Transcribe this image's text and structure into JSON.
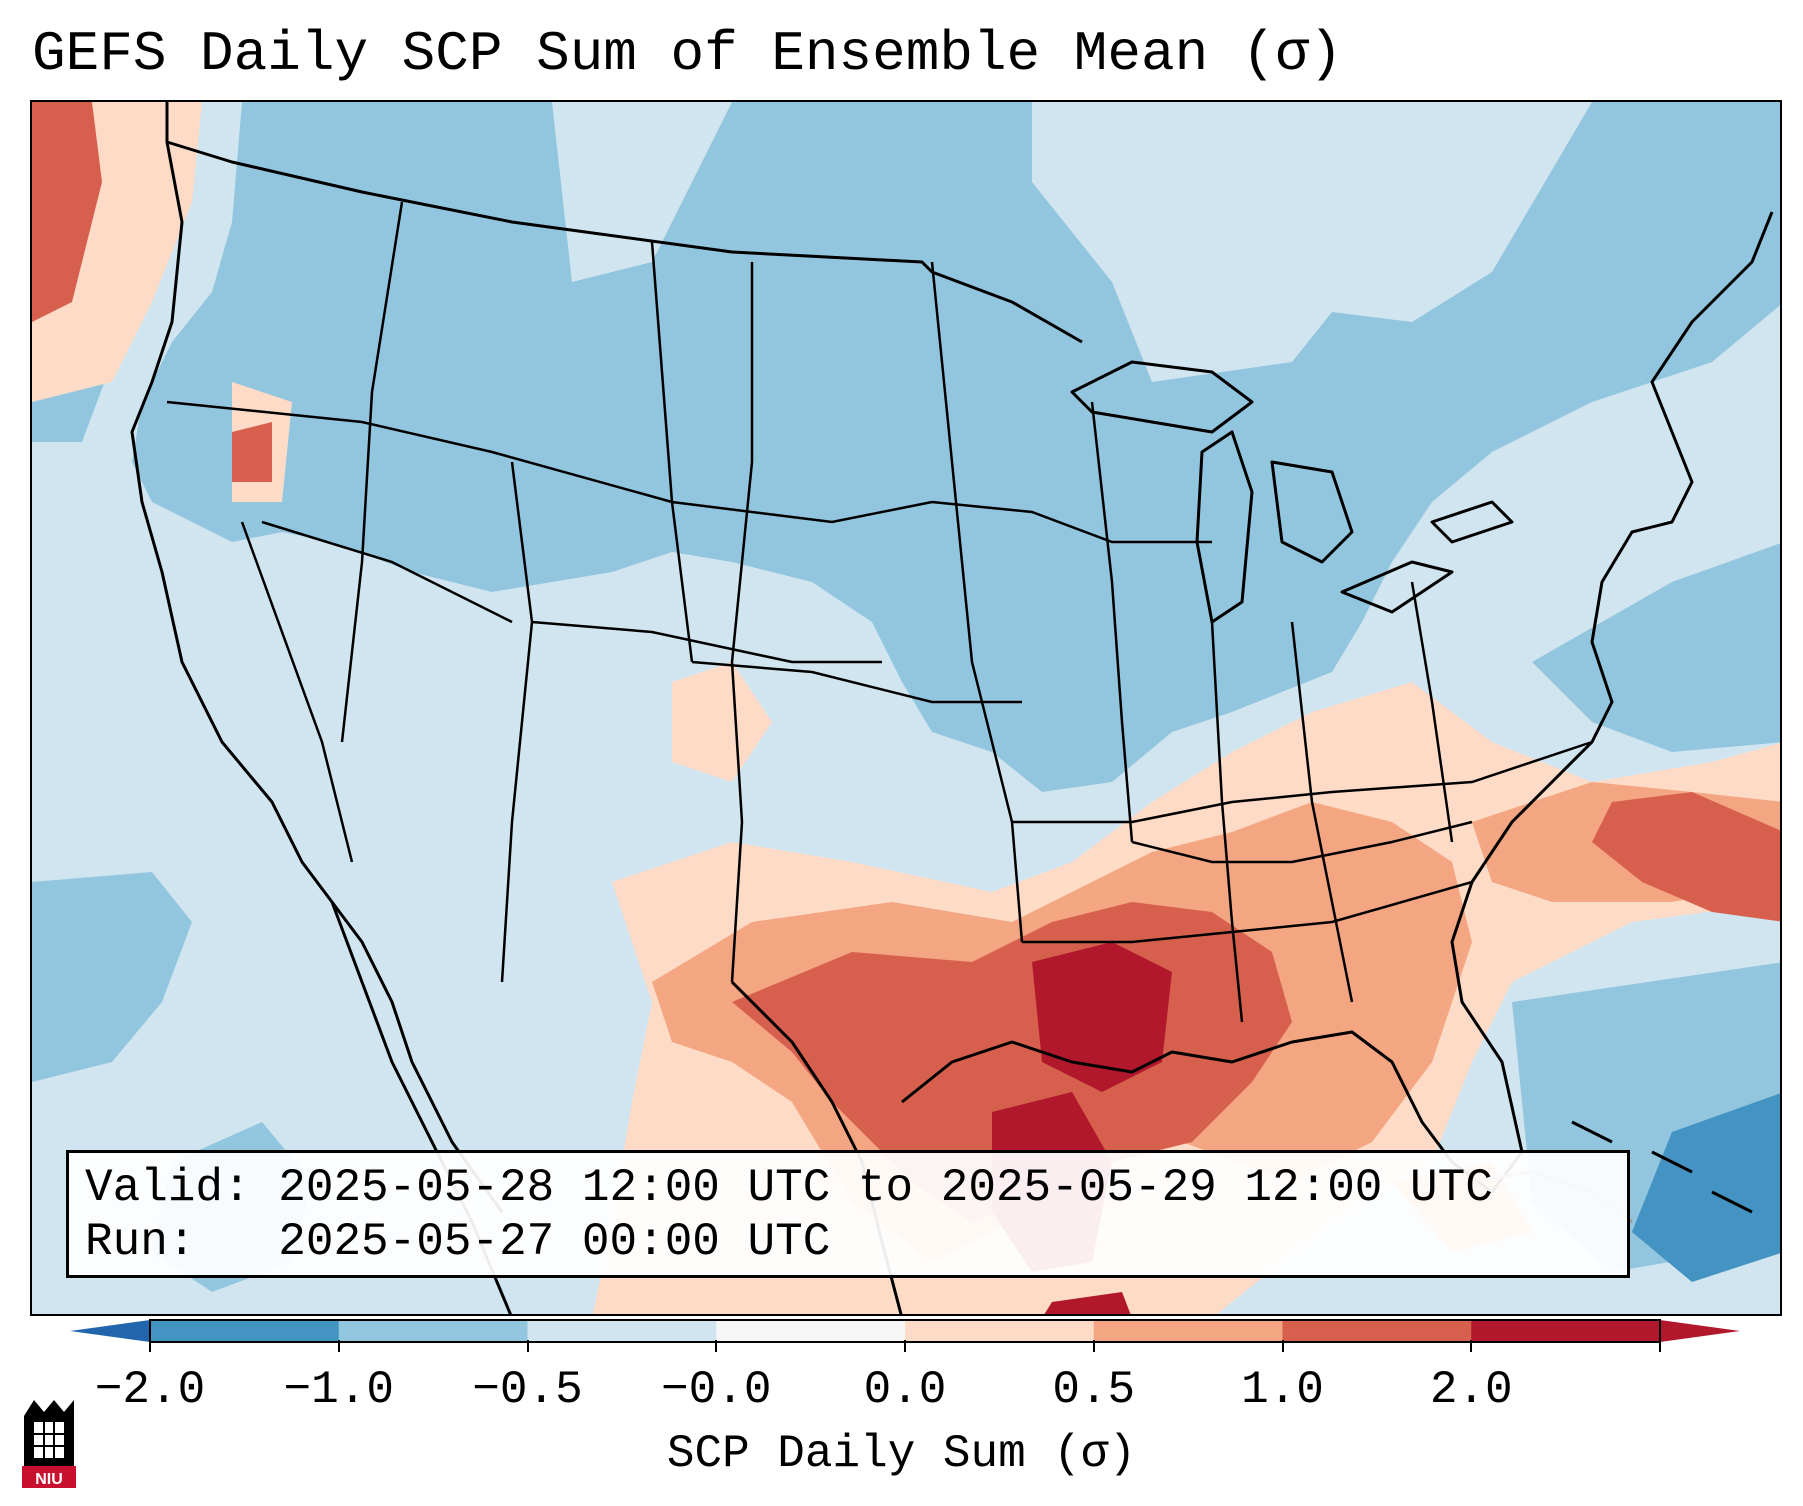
{
  "title": "GEFS Daily SCP Sum of Ensemble Mean (σ)",
  "info": {
    "valid_line": "Valid: 2025-05-28 12:00 UTC to 2025-05-29 12:00 UTC",
    "run_line": "Run:   2025-05-27 00:00 UTC"
  },
  "colorbar": {
    "label": "SCP Daily Sum (σ)",
    "ticks": [
      "−2.0",
      "−1.0",
      "−0.5",
      "−0.0",
      "0.0",
      "0.5",
      "1.0",
      "2.0"
    ],
    "colors": [
      "#4393c3",
      "#92c5de",
      "#d1e5f0",
      "#f7f7f7",
      "#fddbc7",
      "#f4a582",
      "#d6604d",
      "#b2182b"
    ],
    "under_color": "#2166ac",
    "over_color": "#b2182b"
  },
  "map": {
    "background_color": "#d1e5f0",
    "hotspots": [
      {
        "region": "Lower Mississippi Valley",
        "value": 2.0
      },
      {
        "region": "Western Gulf of Mexico",
        "value": 2.0
      },
      {
        "region": "Atlantic off Carolinas",
        "value": 1.0
      },
      {
        "region": "Pacific Northwest",
        "value": 1.0
      }
    ]
  },
  "logo": {
    "text": "NIU"
  }
}
